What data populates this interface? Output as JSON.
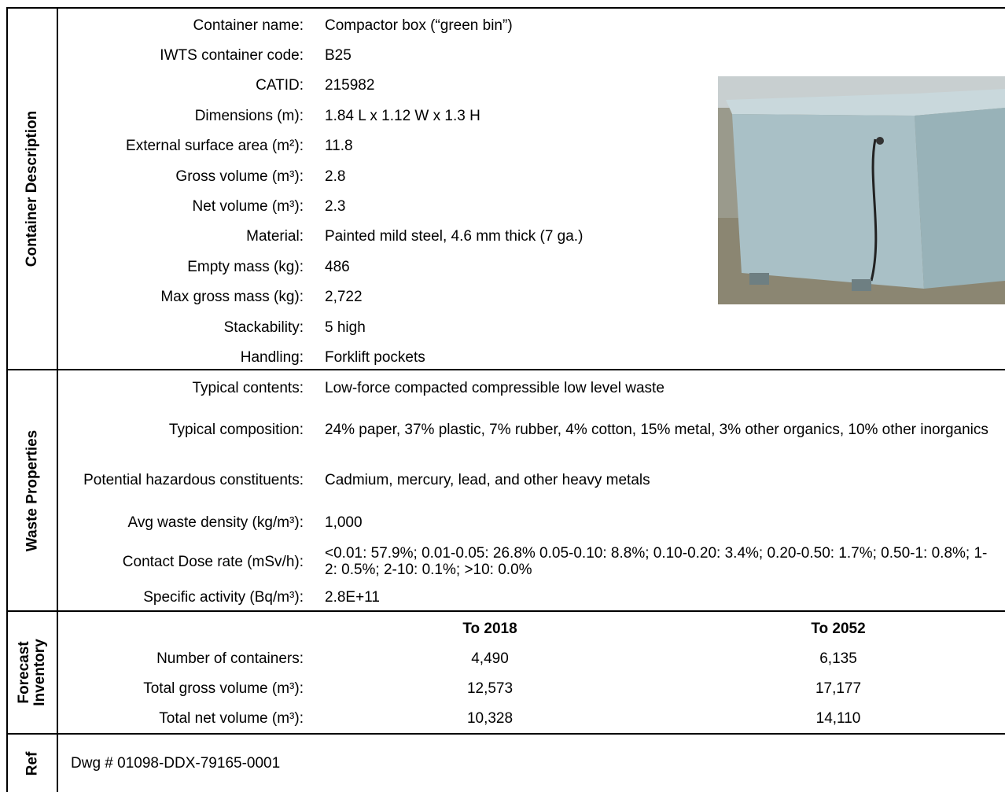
{
  "sections": [
    {
      "title": "Container Description",
      "rows": [
        [
          "Container name:",
          "Compactor box (“green bin”)"
        ],
        [
          "IWTS container code:",
          "B25"
        ],
        [
          "CATID:",
          "215982"
        ],
        [
          "Dimensions (m):",
          "1.84 L x 1.12 W x 1.3 H"
        ],
        [
          "External surface area (m²):",
          "11.8"
        ],
        [
          "Gross volume (m³):",
          "2.8"
        ],
        [
          "Net volume (m³):",
          "2.3"
        ],
        [
          "Material:",
          "Painted mild steel, 4.6 mm thick (7 ga.)"
        ],
        [
          "Empty mass (kg):",
          "486"
        ],
        [
          "Max gross mass (kg):",
          "2,722"
        ],
        [
          "Stackability:",
          "5 high"
        ],
        [
          "Handling:",
          "Forklift pockets"
        ]
      ]
    },
    {
      "title": "Waste Properties",
      "rows": [
        [
          "Typical contents:",
          "Low-force compacted compressible low level waste"
        ],
        [
          "Typical composition:",
          "24% paper, 37% plastic, 7% rubber, 4% cotton, 15% metal, 3% other organics, 10% other inorganics"
        ],
        [
          "Potential hazardous constituents:",
          "Cadmium, mercury, lead, and other heavy metals"
        ],
        [
          "Avg waste density (kg/m³):",
          "1,000"
        ],
        [
          "Contact Dose rate (mSv/h):",
          "<0.01: 57.9%; 0.01-0.05: 26.8%  0.05-0.10: 8.8%; 0.10-0.20: 3.4%; 0.20-0.50: 1.7%; 0.50-1: 0.8%; 1-2: 0.5%; 2-10: 0.1%; >10: 0.0%"
        ],
        [
          "Specific activity (Bq/m³):",
          "2.8E+11"
        ]
      ]
    },
    {
      "title": "Forecast Inventory",
      "columns": [
        "To 2018",
        "To 2052"
      ],
      "rows": [
        [
          "Number of containers:",
          "4,490",
          "6,135"
        ],
        [
          "Total gross volume (m³):",
          "12,573",
          "17,177"
        ],
        [
          "Total net volume (m³):",
          "10,328",
          "14,110"
        ]
      ]
    },
    {
      "title": "Ref",
      "text": "Dwg # 01098-DDX-79165-0001"
    }
  ]
}
